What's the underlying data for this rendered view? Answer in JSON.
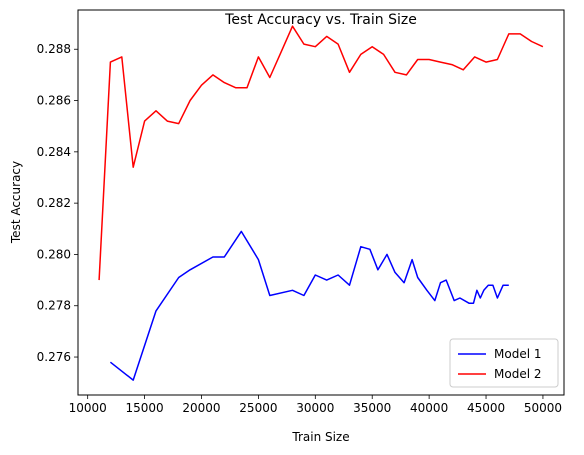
{
  "chart_data": {
    "type": "line",
    "title": "Test Accuracy vs. Train Size",
    "xlabel": "Train Size",
    "ylabel": "Test Accuracy",
    "xlim": [
      9150,
      51850
    ],
    "ylim": [
      0.27452,
      0.28953
    ],
    "xticks": [
      10000,
      15000,
      20000,
      25000,
      30000,
      35000,
      40000,
      45000,
      50000
    ],
    "yticks": [
      0.276,
      0.278,
      0.28,
      0.282,
      0.284,
      0.286,
      0.288
    ],
    "xtick_labels": [
      "10000",
      "15000",
      "20000",
      "25000",
      "30000",
      "35000",
      "40000",
      "45000",
      "50000"
    ],
    "ytick_labels": [
      "0.276",
      "0.278",
      "0.280",
      "0.282",
      "0.284",
      "0.286",
      "0.288"
    ],
    "grid": false,
    "legend_position": "lower-right",
    "series": [
      {
        "name": "Model 1",
        "color": "#0000ff",
        "x": [
          12000,
          14000,
          16000,
          18000,
          19000,
          21000,
          22000,
          23500,
          25000,
          26000,
          28000,
          29000,
          30000,
          31000,
          32000,
          33000,
          34000,
          34800,
          35500,
          36300,
          37000,
          37800,
          38500,
          39000,
          39800,
          40500,
          41000,
          41500,
          42200,
          42700,
          43500,
          43900,
          44200,
          44500,
          44800,
          45200,
          45600,
          46000,
          46500,
          47000
        ],
        "y": [
          0.2758,
          0.2751,
          0.2778,
          0.2791,
          0.2794,
          0.2799,
          0.2799,
          0.2809,
          0.2798,
          0.2784,
          0.2786,
          0.2784,
          0.2792,
          0.279,
          0.2792,
          0.2788,
          0.2803,
          0.2802,
          0.2794,
          0.28,
          0.2793,
          0.2789,
          0.2798,
          0.2791,
          0.2786,
          0.2782,
          0.2789,
          0.279,
          0.2782,
          0.2783,
          0.2781,
          0.2781,
          0.2786,
          0.2783,
          0.2786,
          0.2788,
          0.2788,
          0.2783,
          0.2788,
          0.2788
        ]
      },
      {
        "name": "Model 2",
        "color": "#ff0000",
        "x": [
          11000,
          12000,
          13000,
          14000,
          15000,
          16000,
          17000,
          18000,
          19000,
          20000,
          21000,
          22000,
          23000,
          24000,
          25000,
          26000,
          27000,
          28000,
          29000,
          30000,
          31000,
          32000,
          33000,
          34000,
          35000,
          36000,
          37000,
          38000,
          39000,
          40000,
          41000,
          42000,
          43000,
          44000,
          45000,
          46000,
          47000,
          48000,
          49000,
          50000
        ],
        "y": [
          0.279,
          0.2875,
          0.2877,
          0.2834,
          0.2852,
          0.2856,
          0.2852,
          0.2851,
          0.286,
          0.2866,
          0.287,
          0.2867,
          0.2865,
          0.2865,
          0.2877,
          0.2869,
          0.2879,
          0.2889,
          0.2882,
          0.2881,
          0.2885,
          0.2882,
          0.2871,
          0.2878,
          0.2881,
          0.2878,
          0.2871,
          0.287,
          0.2876,
          0.2876,
          0.2875,
          0.2874,
          0.2872,
          0.2877,
          0.2875,
          0.2876,
          0.2886,
          0.2886,
          0.2883,
          0.2881
        ]
      }
    ]
  }
}
